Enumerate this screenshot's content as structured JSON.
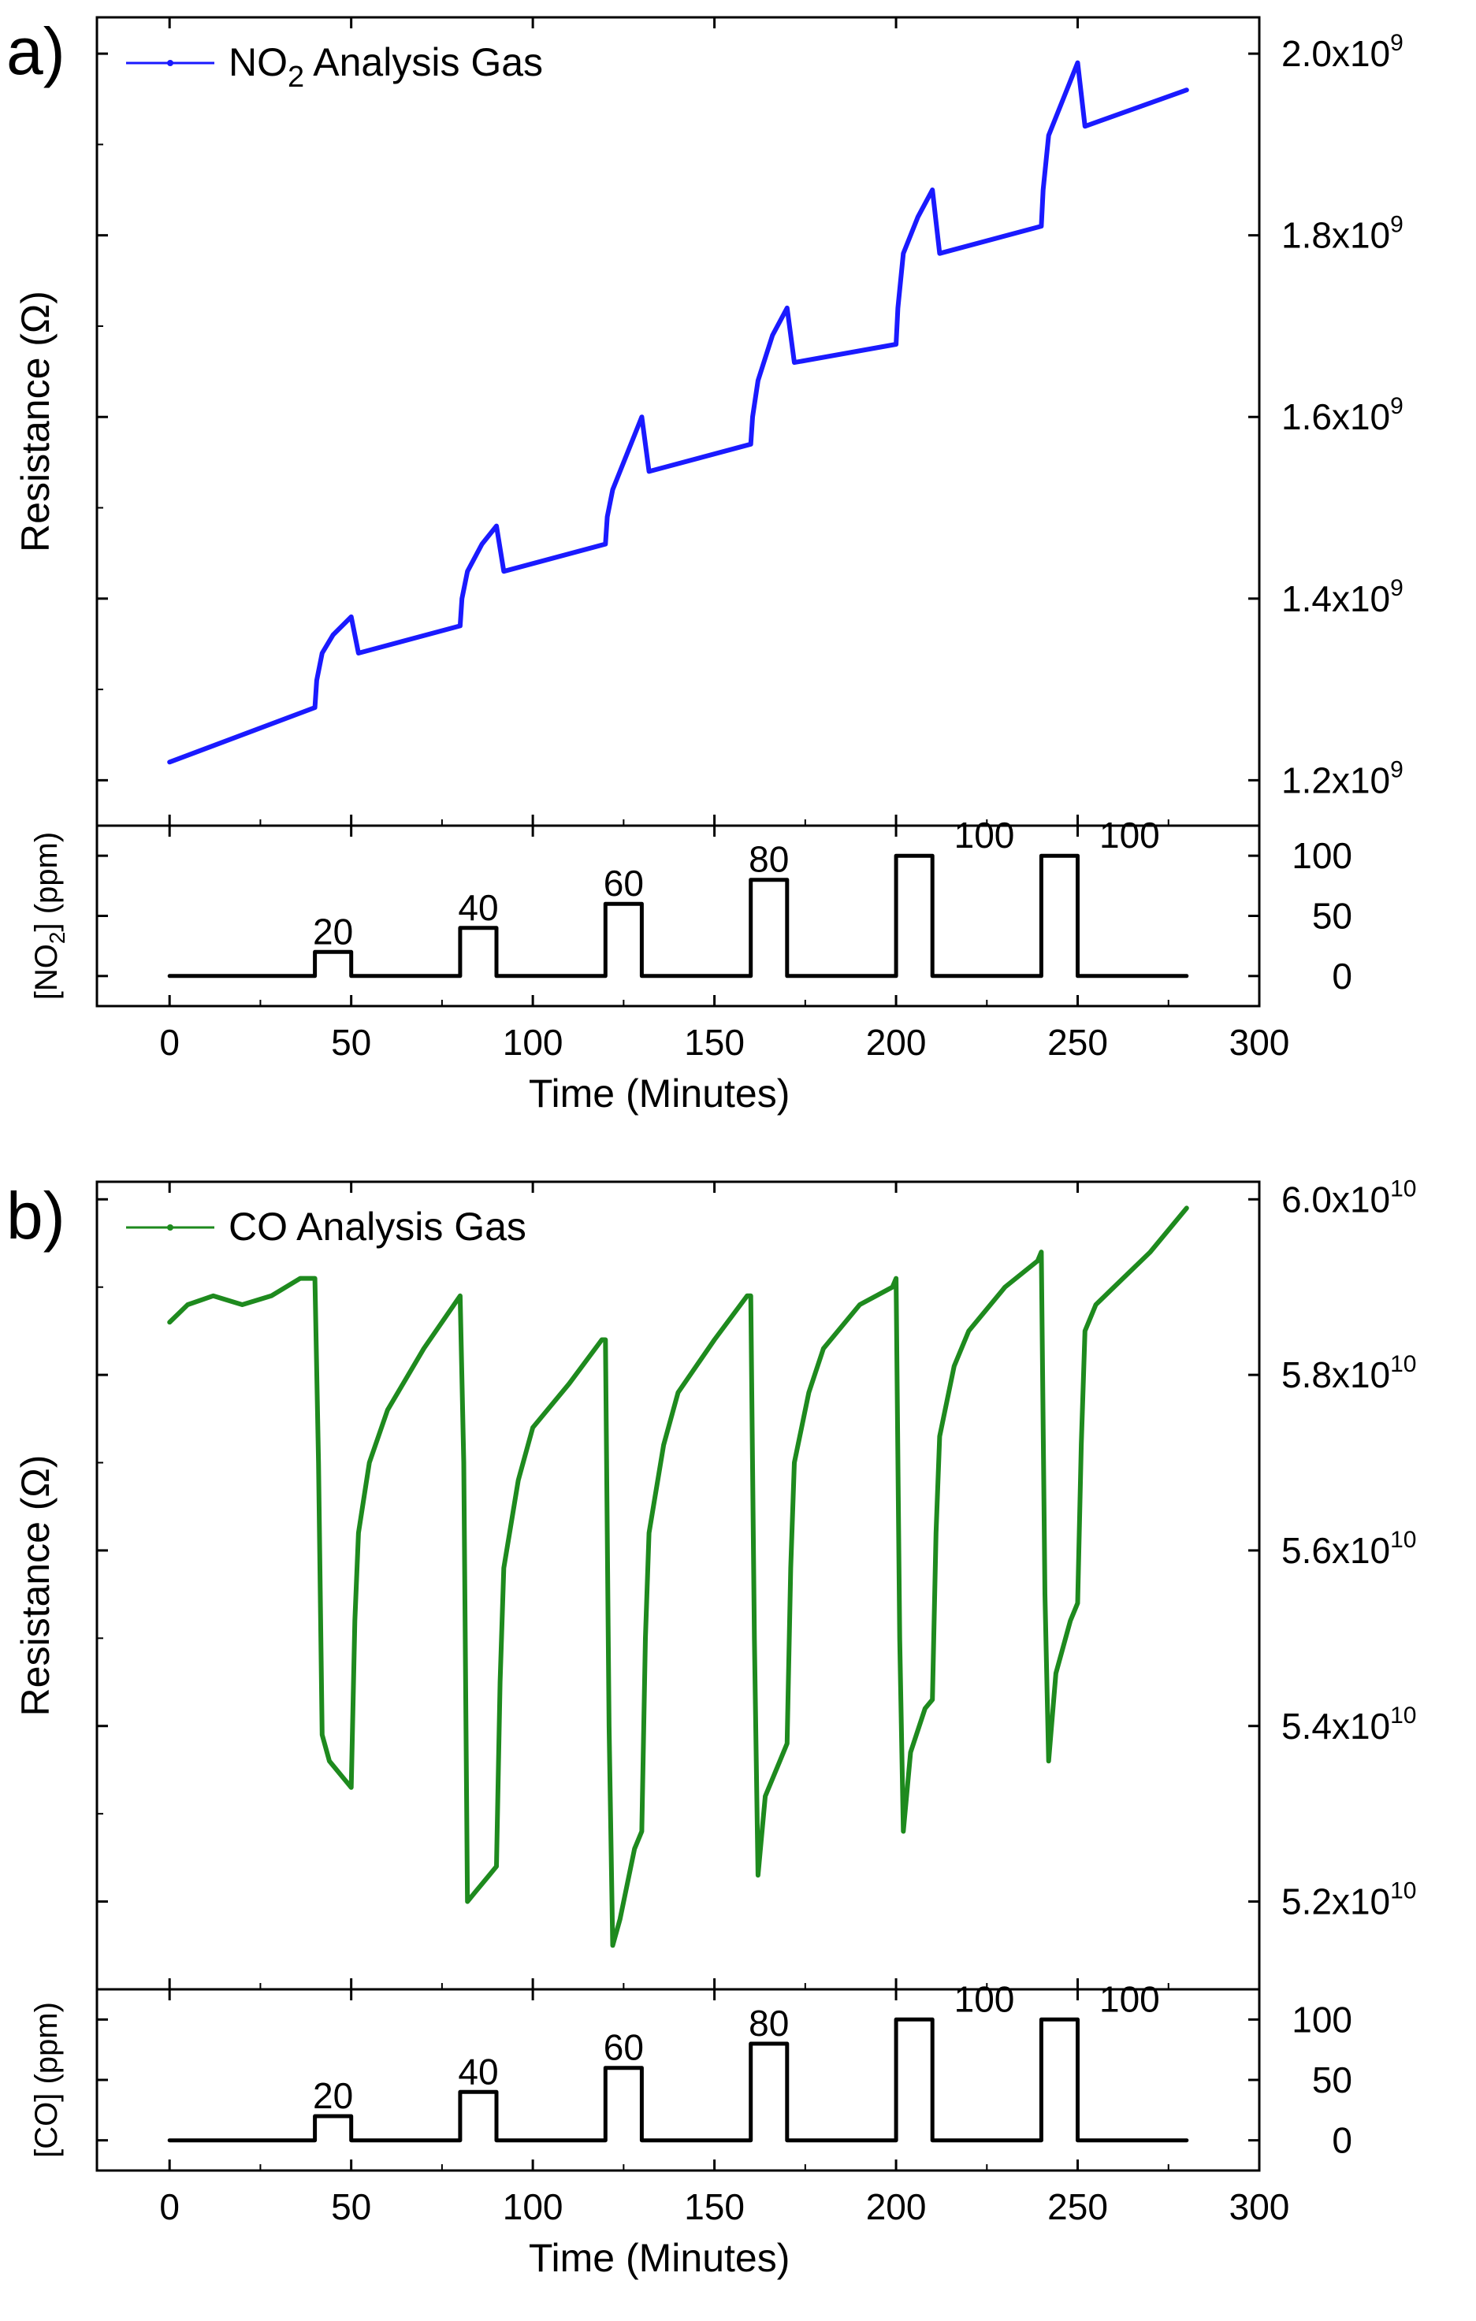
{
  "chart_data": [
    {
      "panel": "a)",
      "type": "line",
      "legend": "NO2 Analysis Gas",
      "legend_parts": {
        "main": "NO",
        "sub": "2",
        "rest": " Analysis Gas"
      },
      "ylabel": "Resistance (Ω)",
      "y_axis_side": "right",
      "color": "#1a1aff",
      "xlim": [
        -20,
        300
      ],
      "ylim": [
        1150000000.0,
        2040000000.0
      ],
      "yticks": [
        {
          "v": 1200000000.0,
          "m": "1.2x10",
          "e": "9"
        },
        {
          "v": 1400000000.0,
          "m": "1.4x10",
          "e": "9"
        },
        {
          "v": 1600000000.0,
          "m": "1.6x10",
          "e": "9"
        },
        {
          "v": 1800000000.0,
          "m": "1.8x10",
          "e": "9"
        },
        {
          "v": 2000000000.0,
          "m": "2.0x10",
          "e": "9"
        }
      ],
      "minor_yticks": [
        1300000000.0,
        1500000000.0,
        1700000000.0,
        1900000000.0
      ],
      "series": [
        {
          "x": [
            0,
            40,
            40.5,
            42,
            45,
            50,
            52,
            80,
            80.5,
            82,
            86,
            90,
            92,
            120,
            120.5,
            122,
            126,
            130,
            132,
            160,
            160.5,
            162,
            166,
            170,
            172,
            200,
            200.5,
            202,
            206,
            210,
            212,
            240,
            240.5,
            242,
            246,
            250,
            252,
            280
          ],
          "y": [
            1220000000.0,
            1280000000.0,
            1310000000.0,
            1340000000.0,
            1360000000.0,
            1380000000.0,
            1340000000.0,
            1370000000.0,
            1400000000.0,
            1430000000.0,
            1460000000.0,
            1480000000.0,
            1430000000.0,
            1460000000.0,
            1490000000.0,
            1520000000.0,
            1560000000.0,
            1600000000.0,
            1540000000.0,
            1570000000.0,
            1600000000.0,
            1640000000.0,
            1690000000.0,
            1720000000.0,
            1660000000.0,
            1680000000.0,
            1720000000.0,
            1780000000.0,
            1820000000.0,
            1850000000.0,
            1780000000.0,
            1810000000.0,
            1850000000.0,
            1910000000.0,
            1950000000.0,
            1990000000.0,
            1920000000.0,
            1960000000.0
          ]
        }
      ]
    },
    {
      "panel": "a)",
      "type": "line",
      "ylabel": "[NO2] (ppm)",
      "ylabel_parts": {
        "main": "[NO",
        "sub": "2",
        "rest": "] (ppm)"
      },
      "y_axis_side": "right",
      "color": "#000000",
      "xlabel": "Time (Minutes)",
      "xlim": [
        -20,
        300
      ],
      "xticks": [
        0,
        50,
        100,
        150,
        200,
        250,
        300
      ],
      "ylim": [
        -25,
        125
      ],
      "yticks": [
        0,
        50,
        100
      ],
      "series": [
        {
          "x": [
            0,
            40,
            40,
            50,
            50,
            80,
            80,
            90,
            90,
            120,
            120,
            130,
            130,
            160,
            160,
            170,
            170,
            200,
            200,
            210,
            210,
            240,
            240,
            250,
            250,
            280
          ],
          "y": [
            0,
            0,
            20,
            20,
            0,
            0,
            40,
            40,
            0,
            0,
            60,
            60,
            0,
            0,
            80,
            80,
            0,
            0,
            100,
            100,
            0,
            0,
            100,
            100,
            0,
            0
          ]
        }
      ],
      "annotations": [
        {
          "text": "20",
          "x": 45,
          "y": 20
        },
        {
          "text": "40",
          "x": 85,
          "y": 40
        },
        {
          "text": "60",
          "x": 125,
          "y": 60
        },
        {
          "text": "80",
          "x": 165,
          "y": 80
        },
        {
          "text": "100",
          "x": 219,
          "y": 100
        },
        {
          "text": "100",
          "x": 259,
          "y": 100
        }
      ]
    },
    {
      "panel": "b)",
      "type": "line",
      "legend": "CO Analysis Gas",
      "ylabel": "Resistance (Ω)",
      "y_axis_side": "right",
      "color": "#1e8a1e",
      "xlim": [
        -20,
        300
      ],
      "ylim": [
        51000000000.0,
        60200000000.0
      ],
      "yticks": [
        {
          "v": 52000000000.0,
          "m": "5.2x10",
          "e": "10"
        },
        {
          "v": 54000000000.0,
          "m": "5.4x10",
          "e": "10"
        },
        {
          "v": 56000000000.0,
          "m": "5.6x10",
          "e": "10"
        },
        {
          "v": 58000000000.0,
          "m": "5.8x10",
          "e": "10"
        },
        {
          "v": 60000000000.0,
          "m": "6.0x10",
          "e": "10"
        }
      ],
      "minor_yticks": [
        53000000000.0,
        55000000000.0,
        57000000000.0,
        59000000000.0
      ],
      "series": [
        {
          "x": [
            0,
            5,
            12,
            20,
            28,
            36,
            40,
            41,
            42,
            44,
            48,
            50,
            51,
            52,
            55,
            60,
            70,
            80,
            81,
            82,
            84,
            88,
            90,
            91,
            92,
            96,
            100,
            110,
            119,
            120,
            121,
            122,
            124,
            128,
            130,
            131,
            132,
            136,
            140,
            150,
            159,
            160,
            161,
            162,
            164,
            168,
            170,
            171,
            172,
            176,
            180,
            190,
            199,
            200,
            201,
            202,
            204,
            208,
            210,
            211,
            212,
            216,
            220,
            230,
            239,
            240,
            241,
            242,
            244,
            248,
            250,
            251,
            252,
            255,
            260,
            270,
            280
          ],
          "y": [
            58600000000.0,
            58800000000.0,
            58900000000.0,
            58800000000.0,
            58900000000.0,
            59100000000.0,
            59100000000.0,
            57000000000.0,
            53900000000.0,
            53600000000.0,
            53400000000.0,
            53300000000.0,
            55200000000.0,
            56200000000.0,
            57000000000.0,
            57600000000.0,
            58300000000.0,
            58900000000.0,
            57000000000.0,
            52000000000.0,
            52100000000.0,
            52300000000.0,
            52400000000.0,
            54500000000.0,
            55800000000.0,
            56800000000.0,
            57400000000.0,
            57900000000.0,
            58400000000.0,
            58400000000.0,
            54000000000.0,
            51500000000.0,
            51800000000.0,
            52600000000.0,
            52800000000.0,
            55000000000.0,
            56200000000.0,
            57200000000.0,
            57800000000.0,
            58400000000.0,
            58900000000.0,
            58900000000.0,
            55000000000.0,
            52300000000.0,
            53200000000.0,
            53600000000.0,
            53800000000.0,
            55800000000.0,
            57000000000.0,
            57800000000.0,
            58300000000.0,
            58800000000.0,
            59000000000.0,
            59100000000.0,
            55000000000.0,
            52800000000.0,
            53700000000.0,
            54200000000.0,
            54300000000.0,
            56200000000.0,
            57300000000.0,
            58100000000.0,
            58500000000.0,
            59000000000.0,
            59300000000.0,
            59400000000.0,
            55500000000.0,
            53600000000.0,
            54600000000.0,
            55200000000.0,
            55400000000.0,
            57200000000.0,
            58500000000.0,
            58800000000.0,
            59000000000.0,
            59400000000.0,
            59900000000.0
          ]
        }
      ]
    },
    {
      "panel": "b)",
      "type": "line",
      "ylabel": "[CO] (ppm)",
      "y_axis_side": "right",
      "color": "#000000",
      "xlabel": "Time (Minutes)",
      "xlim": [
        -20,
        300
      ],
      "xticks": [
        0,
        50,
        100,
        150,
        200,
        250,
        300
      ],
      "ylim": [
        -25,
        125
      ],
      "yticks": [
        0,
        50,
        100
      ],
      "series": [
        {
          "x": [
            0,
            40,
            40,
            50,
            50,
            80,
            80,
            90,
            90,
            120,
            120,
            130,
            130,
            160,
            160,
            170,
            170,
            200,
            200,
            210,
            210,
            240,
            240,
            250,
            250,
            280
          ],
          "y": [
            0,
            0,
            20,
            20,
            0,
            0,
            40,
            40,
            0,
            0,
            60,
            60,
            0,
            0,
            80,
            80,
            0,
            0,
            100,
            100,
            0,
            0,
            100,
            100,
            0,
            0
          ]
        }
      ],
      "annotations": [
        {
          "text": "20",
          "x": 45,
          "y": 20
        },
        {
          "text": "40",
          "x": 85,
          "y": 40
        },
        {
          "text": "60",
          "x": 125,
          "y": 60
        },
        {
          "text": "80",
          "x": 165,
          "y": 80
        },
        {
          "text": "100",
          "x": 219,
          "y": 100
        },
        {
          "text": "100",
          "x": 259,
          "y": 100
        }
      ]
    }
  ]
}
